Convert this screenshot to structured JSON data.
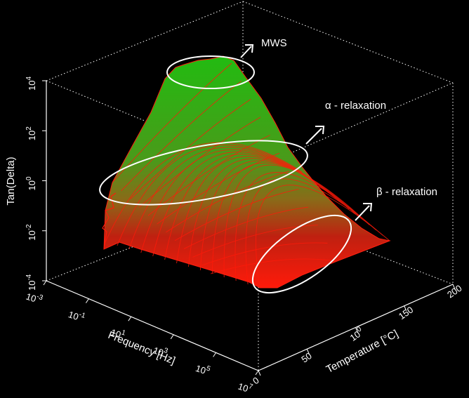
{
  "chart_data": {
    "type": "surface3d",
    "zlabel": "Tan(Delta)",
    "xlabel": "Frequency [Hz]",
    "ylabel": "Temperature [°C]",
    "z_scale": "log",
    "x_scale": "log",
    "zlim": [
      0.0001,
      10000
    ],
    "xlim": [
      0.001,
      10000000
    ],
    "ylim": [
      0,
      200
    ],
    "z_ticks": [
      "10-4",
      "10-2",
      "100",
      "102",
      "104"
    ],
    "x_ticks": [
      "10-3",
      "10-1",
      "101",
      "103",
      "105",
      "107"
    ],
    "y_ticks": [
      "0",
      "50",
      "100",
      "150",
      "200"
    ],
    "colormap": [
      "#ff0000",
      "#00cc00"
    ],
    "annotations": [
      {
        "label": "MWS"
      },
      {
        "label": "α - relaxation"
      },
      {
        "label": "β - relaxation"
      }
    ]
  }
}
